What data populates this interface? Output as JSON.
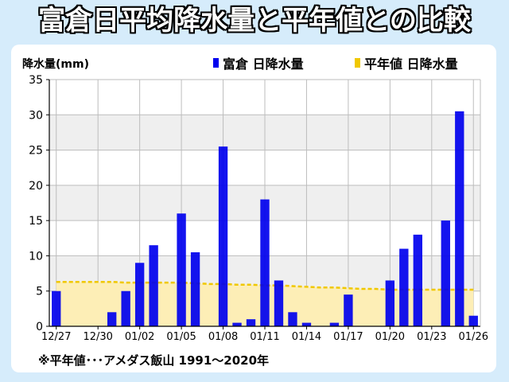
{
  "title": "富倉日平均降水量と平年値との比較",
  "footnote": "※平年値･･･アメダス飯山 1991〜2020年",
  "colors": {
    "bar": "#0000ee",
    "normal_line": "#f0c800",
    "normal_fill": "#fdeeb6",
    "band": "#efefef",
    "background": "#d6ecfb"
  },
  "chart_data": {
    "type": "bar",
    "ylabel": "降水量(mm)",
    "ylim": [
      0,
      35
    ],
    "yticks": [
      0,
      5,
      10,
      15,
      20,
      25,
      30,
      35
    ],
    "grid": true,
    "legend_position": "top-right",
    "xtick_labels": [
      "12/27",
      "12/30",
      "01/02",
      "01/05",
      "01/08",
      "01/11",
      "01/14",
      "01/17",
      "01/20",
      "01/23",
      "01/26"
    ],
    "categories": [
      "12/27",
      "12/28",
      "12/29",
      "12/30",
      "12/31",
      "01/01",
      "01/02",
      "01/03",
      "01/04",
      "01/05",
      "01/06",
      "01/07",
      "01/08",
      "01/09",
      "01/10",
      "01/11",
      "01/12",
      "01/13",
      "01/14",
      "01/15",
      "01/16",
      "01/17",
      "01/18",
      "01/19",
      "01/20",
      "01/21",
      "01/22",
      "01/23",
      "01/24",
      "01/25",
      "01/26"
    ],
    "series": [
      {
        "name": "富倉 日降水量",
        "type": "bar",
        "values": [
          5,
          0,
          0,
          0,
          2,
          5,
          9,
          11.5,
          0,
          16,
          10.5,
          0,
          25.5,
          0.5,
          1,
          18,
          6.5,
          2,
          0.5,
          0,
          0.5,
          4.5,
          0,
          0,
          6.5,
          11,
          13,
          0,
          15,
          30.5,
          1.5
        ]
      },
      {
        "name": "平年値 日降水量",
        "type": "area",
        "values": [
          6.3,
          6.3,
          6.3,
          6.3,
          6.3,
          6.2,
          6.2,
          6.2,
          6.2,
          6.2,
          6.1,
          6.0,
          6.0,
          5.9,
          5.9,
          5.8,
          5.8,
          5.7,
          5.6,
          5.5,
          5.5,
          5.4,
          5.3,
          5.3,
          5.2,
          5.2,
          5.2,
          5.2,
          5.2,
          5.2,
          5.2
        ]
      }
    ]
  }
}
